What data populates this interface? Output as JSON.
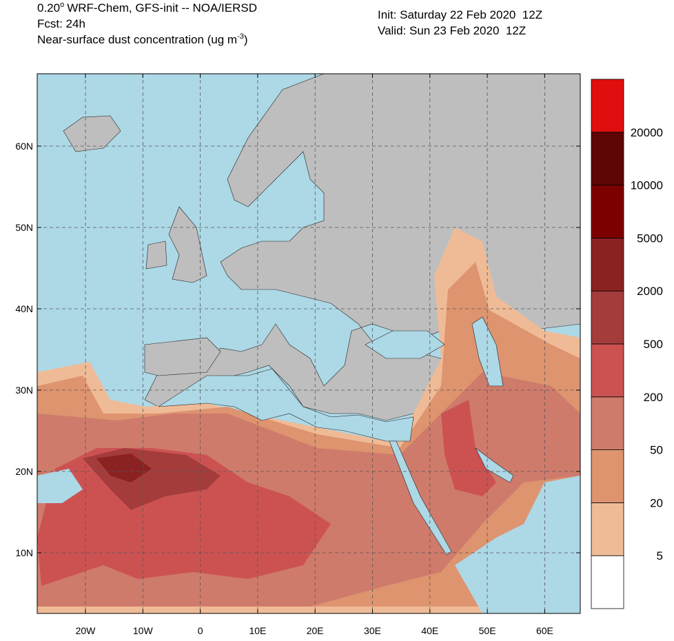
{
  "header": {
    "resolution": "0.20",
    "degree": "o",
    "model": "WRF-Chem, GFS-init -- NOA/IERSD",
    "forecast": "Fcst: 24h",
    "variable": "Near-surface dust concentration (ug m",
    "unit_exponent": "-3",
    "variable_end": ")",
    "init": "Init: Saturday 22 Feb 2020  12Z",
    "valid": "Valid: Sun 23 Feb 2020  12Z"
  },
  "map": {
    "latitude_labels": [
      "60N",
      "50N",
      "40N",
      "30N",
      "20N",
      "10N"
    ],
    "longitude_labels": [
      "20W",
      "10W",
      "0",
      "10E",
      "20E",
      "30E",
      "40E",
      "50E",
      "60E"
    ]
  },
  "colorbar": {
    "labels": [
      "5",
      "20",
      "50",
      "200",
      "500",
      "2000",
      "5000",
      "10000",
      "20000"
    ],
    "colors": [
      "#ffffff",
      "#efbb96",
      "#dd946f",
      "#cf7b6b",
      "#cc5252",
      "#a53c3c",
      "#8b2222",
      "#7d0000",
      "#5e0606",
      "#e00f0f"
    ]
  }
}
